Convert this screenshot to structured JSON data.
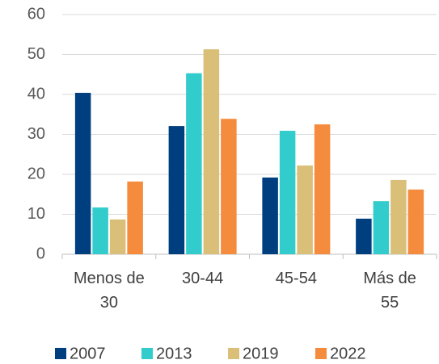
{
  "chart_data": {
    "type": "bar",
    "categories": [
      "Menos de 30",
      "30-44",
      "45-54",
      "Más de 55"
    ],
    "series": [
      {
        "name": "2007",
        "color": "#003f7f",
        "values": [
          40.4,
          32.1,
          19.2,
          8.9
        ]
      },
      {
        "name": "2013",
        "color": "#33cccc",
        "values": [
          11.7,
          45.3,
          30.9,
          13.3
        ]
      },
      {
        "name": "2019",
        "color": "#d9bf77",
        "values": [
          8.7,
          51.3,
          22.2,
          18.6
        ]
      },
      {
        "name": "2022",
        "color": "#f58b3c",
        "values": [
          18.2,
          33.9,
          32.5,
          16.2
        ]
      }
    ],
    "ylim": [
      0,
      60
    ],
    "yticks": [
      0,
      10,
      20,
      30,
      40,
      50,
      60
    ],
    "grid": true,
    "legend": "bottom"
  }
}
